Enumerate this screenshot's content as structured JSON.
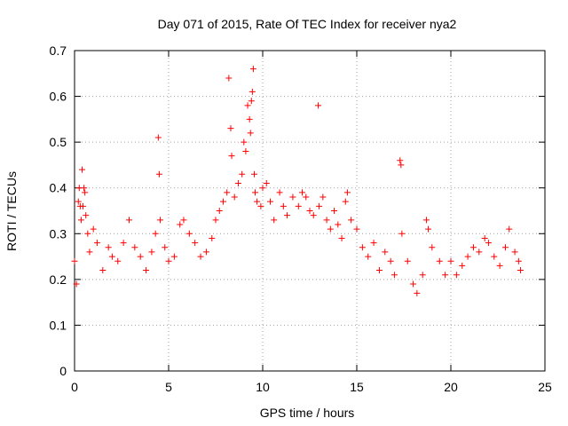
{
  "chart_data": {
    "type": "scatter",
    "title": "Day 071 of 2015, Rate Of TEC Index for receiver nya2",
    "xlabel": "GPS time / hours",
    "ylabel": "ROTI / TECUs",
    "xlim": [
      0,
      25
    ],
    "ylim": [
      0,
      0.7
    ],
    "xticks": [
      0,
      5,
      10,
      15,
      20,
      25
    ],
    "xtick_labels": [
      "0",
      "5",
      "10",
      "15",
      "20",
      "25"
    ],
    "yticks": [
      0,
      0.1,
      0.2,
      0.3,
      0.4,
      0.5,
      0.6,
      0.7
    ],
    "ytick_labels": [
      "0",
      "0.1",
      "0.2",
      "0.3",
      "0.4",
      "0.5",
      "0.6",
      "0.7"
    ],
    "grid": true,
    "marker": "+",
    "series": [
      {
        "name": "ROTI",
        "color": "#ff0000",
        "points": [
          [
            0.0,
            0.24
          ],
          [
            0.1,
            0.19
          ],
          [
            0.2,
            0.37
          ],
          [
            0.25,
            0.4
          ],
          [
            0.3,
            0.36
          ],
          [
            0.35,
            0.33
          ],
          [
            0.4,
            0.44
          ],
          [
            0.45,
            0.36
          ],
          [
            0.5,
            0.4
          ],
          [
            0.55,
            0.39
          ],
          [
            0.6,
            0.34
          ],
          [
            0.7,
            0.3
          ],
          [
            0.8,
            0.26
          ],
          [
            1.0,
            0.31
          ],
          [
            1.2,
            0.28
          ],
          [
            1.5,
            0.22
          ],
          [
            1.8,
            0.27
          ],
          [
            2.0,
            0.25
          ],
          [
            2.3,
            0.24
          ],
          [
            2.6,
            0.28
          ],
          [
            2.9,
            0.33
          ],
          [
            3.2,
            0.27
          ],
          [
            3.5,
            0.25
          ],
          [
            3.8,
            0.22
          ],
          [
            4.1,
            0.26
          ],
          [
            4.3,
            0.3
          ],
          [
            4.45,
            0.51
          ],
          [
            4.5,
            0.43
          ],
          [
            4.55,
            0.33
          ],
          [
            4.8,
            0.27
          ],
          [
            5.0,
            0.24
          ],
          [
            5.3,
            0.25
          ],
          [
            5.6,
            0.32
          ],
          [
            5.8,
            0.33
          ],
          [
            6.1,
            0.3
          ],
          [
            6.4,
            0.28
          ],
          [
            6.7,
            0.25
          ],
          [
            7.0,
            0.26
          ],
          [
            7.3,
            0.29
          ],
          [
            7.5,
            0.33
          ],
          [
            7.7,
            0.35
          ],
          [
            7.9,
            0.37
          ],
          [
            8.1,
            0.39
          ],
          [
            8.2,
            0.64
          ],
          [
            8.3,
            0.53
          ],
          [
            8.35,
            0.47
          ],
          [
            8.5,
            0.38
          ],
          [
            8.7,
            0.41
          ],
          [
            8.9,
            0.43
          ],
          [
            9.0,
            0.5
          ],
          [
            9.1,
            0.48
          ],
          [
            9.2,
            0.58
          ],
          [
            9.3,
            0.55
          ],
          [
            9.35,
            0.52
          ],
          [
            9.4,
            0.59
          ],
          [
            9.45,
            0.61
          ],
          [
            9.5,
            0.66
          ],
          [
            9.55,
            0.43
          ],
          [
            9.6,
            0.39
          ],
          [
            9.7,
            0.37
          ],
          [
            9.9,
            0.36
          ],
          [
            10.0,
            0.4
          ],
          [
            10.2,
            0.41
          ],
          [
            10.4,
            0.37
          ],
          [
            10.6,
            0.33
          ],
          [
            10.9,
            0.39
          ],
          [
            11.1,
            0.36
          ],
          [
            11.3,
            0.34
          ],
          [
            11.6,
            0.38
          ],
          [
            11.9,
            0.36
          ],
          [
            12.1,
            0.39
          ],
          [
            12.3,
            0.38
          ],
          [
            12.5,
            0.35
          ],
          [
            12.7,
            0.34
          ],
          [
            12.95,
            0.58
          ],
          [
            13.0,
            0.36
          ],
          [
            13.2,
            0.38
          ],
          [
            13.4,
            0.33
          ],
          [
            13.6,
            0.31
          ],
          [
            13.8,
            0.35
          ],
          [
            14.0,
            0.32
          ],
          [
            14.2,
            0.29
          ],
          [
            14.4,
            0.37
          ],
          [
            14.5,
            0.39
          ],
          [
            14.7,
            0.33
          ],
          [
            15.0,
            0.31
          ],
          [
            15.3,
            0.27
          ],
          [
            15.6,
            0.25
          ],
          [
            15.9,
            0.28
          ],
          [
            16.2,
            0.22
          ],
          [
            16.5,
            0.26
          ],
          [
            16.8,
            0.24
          ],
          [
            17.0,
            0.21
          ],
          [
            17.3,
            0.46
          ],
          [
            17.35,
            0.45
          ],
          [
            17.4,
            0.3
          ],
          [
            17.7,
            0.24
          ],
          [
            18.0,
            0.19
          ],
          [
            18.2,
            0.17
          ],
          [
            18.5,
            0.21
          ],
          [
            18.7,
            0.33
          ],
          [
            18.8,
            0.31
          ],
          [
            19.0,
            0.27
          ],
          [
            19.4,
            0.24
          ],
          [
            19.7,
            0.21
          ],
          [
            20.0,
            0.24
          ],
          [
            20.3,
            0.21
          ],
          [
            20.6,
            0.23
          ],
          [
            20.9,
            0.25
          ],
          [
            21.2,
            0.27
          ],
          [
            21.5,
            0.26
          ],
          [
            21.8,
            0.29
          ],
          [
            22.0,
            0.28
          ],
          [
            22.3,
            0.25
          ],
          [
            22.6,
            0.23
          ],
          [
            22.9,
            0.27
          ],
          [
            23.1,
            0.31
          ],
          [
            23.4,
            0.26
          ],
          [
            23.6,
            0.24
          ],
          [
            23.7,
            0.22
          ]
        ]
      }
    ]
  }
}
